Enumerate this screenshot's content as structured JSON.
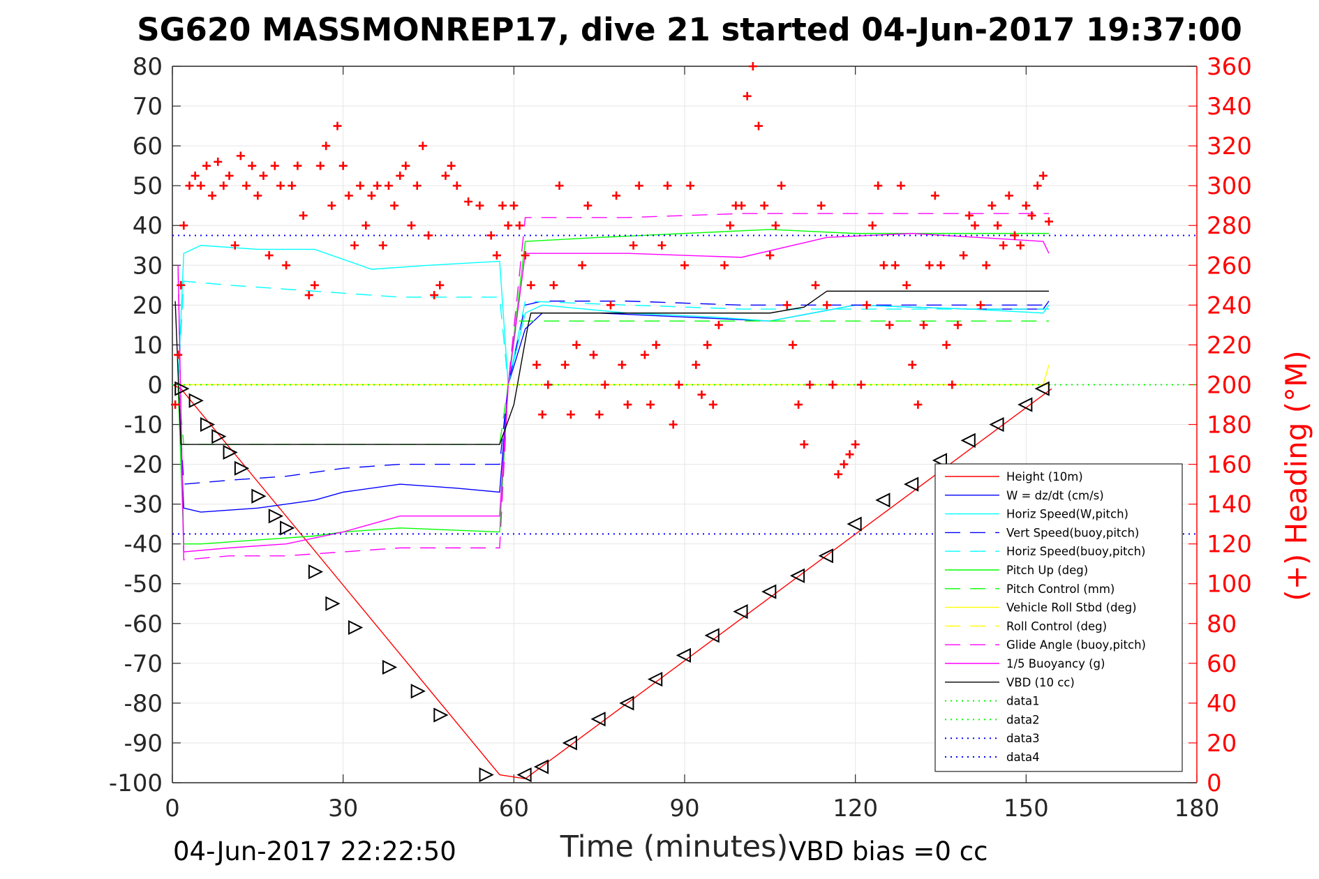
{
  "chart_data": {
    "type": "line",
    "title": "SG620 MASSMONREP17, dive 21 started 04-Jun-2017 19:37:00",
    "xlabel": "Time (minutes)",
    "ylabel": "",
    "ylabel_right": "(+) Heading (°M)",
    "xlim": [
      0,
      180
    ],
    "ylim": [
      -100,
      80
    ],
    "ylim_right": [
      0,
      360
    ],
    "xticks": [
      "0",
      "30",
      "60",
      "90",
      "120",
      "150",
      "180"
    ],
    "yticks_left": [
      "80",
      "70",
      "60",
      "50",
      "40",
      "30",
      "20",
      "10",
      "0",
      "-10",
      "-20",
      "-30",
      "-40",
      "-50",
      "-60",
      "-70",
      "-80",
      "-90",
      "-100"
    ],
    "yticks_right": [
      "360",
      "340",
      "320",
      "300",
      "280",
      "260",
      "240",
      "220",
      "200",
      "180",
      "160",
      "140",
      "120",
      "100",
      "80",
      "60",
      "40",
      "20",
      "0"
    ],
    "grid": true,
    "legend_position": "bottom-right",
    "footer_left": "04-Jun-2017 22:22:50",
    "footer_right": "VBD bias =0 cc",
    "series": [
      {
        "name": "Height (10m)",
        "color": "#ff0000",
        "style": "solid",
        "x": [
          0,
          1.5,
          57.5,
          62,
          154.5
        ],
        "y": [
          0,
          -1,
          -98,
          -99,
          -1
        ]
      },
      {
        "name": "W = dz/dt (cm/s)",
        "color": "#0000ff",
        "style": "solid",
        "x": [
          1,
          2,
          5,
          15,
          25,
          30,
          40,
          50,
          57.5,
          59,
          62,
          65,
          75,
          90,
          105,
          120,
          140,
          153,
          154
        ],
        "y": [
          0,
          -31,
          -32,
          -31,
          -29,
          -27,
          -25,
          -26,
          -27,
          0,
          14,
          18,
          18,
          17,
          16,
          20,
          19,
          19,
          21
        ]
      },
      {
        "name": "Horiz Speed(W,pitch)",
        "color": "#00ffff",
        "style": "solid",
        "x": [
          1,
          2,
          5,
          15,
          25,
          35,
          45,
          57.5,
          59,
          62,
          65,
          80,
          95,
          105,
          120,
          140,
          153,
          154
        ],
        "y": [
          0,
          33,
          35,
          34,
          34,
          29,
          30,
          31,
          0,
          18,
          20,
          18,
          17,
          16,
          20,
          19,
          18,
          20
        ]
      },
      {
        "name": "Vert Speed(buoy,pitch)",
        "color": "#0000ff",
        "style": "dashed",
        "x": [
          1,
          2,
          10,
          20,
          30,
          40,
          57.5,
          59,
          62,
          65,
          80,
          100,
          120,
          140,
          153,
          154
        ],
        "y": [
          0,
          -25,
          -24,
          -23,
          -21,
          -20,
          -20,
          0,
          20,
          21,
          21,
          20,
          20,
          20,
          20,
          20
        ]
      },
      {
        "name": "Horiz Speed(buoy,pitch)",
        "color": "#00ffff",
        "style": "dashed",
        "x": [
          1,
          2,
          10,
          20,
          30,
          40,
          57.5,
          59,
          62,
          80,
          100,
          120,
          140,
          153,
          154
        ],
        "y": [
          0,
          26,
          25,
          24,
          23,
          22,
          22,
          0,
          21,
          20,
          19,
          19,
          19,
          19,
          19
        ]
      },
      {
        "name": "Pitch Up (deg)",
        "color": "#00ff00",
        "style": "solid",
        "x": [
          1,
          2,
          5,
          15,
          25,
          30,
          40,
          57.5,
          59,
          62,
          75,
          90,
          105,
          120,
          140,
          153,
          154
        ],
        "y": [
          0,
          -40,
          -40,
          -39,
          -38,
          -37,
          -36,
          -37,
          0,
          36,
          37,
          38,
          39,
          38,
          38,
          38,
          38
        ]
      },
      {
        "name": "Pitch Control (mm)",
        "color": "#00ff00",
        "style": "dashed",
        "x": [
          1,
          2,
          57.5,
          59,
          60.5,
          154
        ],
        "y": [
          0,
          -15,
          -15,
          0,
          16,
          16
        ]
      },
      {
        "name": "Vehicle Roll Stbd (deg)",
        "color": "#ffff00",
        "style": "solid",
        "x": [
          1,
          2,
          10,
          20,
          30,
          40,
          50,
          57.5,
          59,
          62,
          80,
          100,
          120,
          140,
          153,
          154
        ],
        "y": [
          0,
          0,
          0,
          0,
          0,
          0,
          0,
          0,
          0,
          0,
          0,
          0,
          0,
          0,
          0,
          5
        ]
      },
      {
        "name": "Roll Control (deg)",
        "color": "#ffff00",
        "style": "dashed",
        "x": [
          1,
          2,
          57.5,
          59,
          62,
          154
        ],
        "y": [
          0,
          0,
          0,
          0,
          0,
          0
        ]
      },
      {
        "name": "Glide Angle (buoy,pitch)",
        "color": "#ff00ff",
        "style": "dashed",
        "x": [
          1,
          2,
          10,
          20,
          30,
          40,
          57.5,
          59,
          62,
          80,
          100,
          120,
          140,
          153,
          154
        ],
        "y": [
          29,
          -44,
          -43,
          -43,
          -42,
          -41,
          -41,
          0,
          42,
          42,
          43,
          43,
          43,
          43,
          43
        ]
      },
      {
        "name": "1/5 Buoyancy (g)",
        "color": "#ff00ff",
        "style": "solid",
        "x": [
          1,
          2,
          10,
          20,
          30,
          40,
          57.5,
          59,
          62,
          80,
          100,
          115,
          130,
          153,
          154
        ],
        "y": [
          30,
          -42,
          -41,
          -40,
          -37,
          -33,
          -33,
          0,
          33,
          33,
          32,
          37,
          38,
          36,
          33
        ]
      },
      {
        "name": "VBD (10 cc)",
        "color": "#000000",
        "style": "solid",
        "x": [
          0.5,
          1.5,
          57.5,
          60,
          62.5,
          63,
          105,
          111,
          115,
          154
        ],
        "y": [
          21,
          -15,
          -15,
          -5,
          15,
          18,
          18,
          19.5,
          23.5,
          23.5
        ]
      },
      {
        "name": "data1",
        "color": "#00ff00",
        "style": "dotted",
        "x": [
          0,
          180
        ],
        "y": [
          0,
          0
        ]
      },
      {
        "name": "data2",
        "color": "#00ff00",
        "style": "dotted",
        "x": [
          0,
          180
        ],
        "y": [
          0,
          0
        ]
      },
      {
        "name": "data3",
        "color": "#0000ff",
        "style": "dotted",
        "x": [
          0,
          180
        ],
        "y": [
          37.5,
          37.5
        ]
      },
      {
        "name": "data4",
        "color": "#0000ff",
        "style": "dotted",
        "x": [
          0,
          180
        ],
        "y": [
          -37.5,
          -37.5
        ]
      }
    ],
    "heading_series": {
      "name": "(+) Heading (°M)",
      "color": "#ff0000",
      "marker": "+",
      "x": [
        0.5,
        1,
        1.5,
        2,
        3,
        4,
        5,
        6,
        7,
        8,
        9,
        10,
        11,
        12,
        13,
        14,
        15,
        16,
        17,
        18,
        19,
        20,
        21,
        22,
        23,
        24,
        25,
        26,
        27,
        28,
        29,
        30,
        31,
        32,
        33,
        34,
        35,
        36,
        37,
        38,
        39,
        40,
        41,
        42,
        43,
        44,
        45,
        46,
        47,
        48,
        49,
        50,
        52,
        54,
        56,
        57,
        58,
        59,
        60,
        61,
        62,
        63,
        64,
        65,
        66,
        67,
        68,
        69,
        70,
        71,
        72,
        73,
        74,
        75,
        76,
        77,
        78,
        79,
        80,
        81,
        82,
        83,
        84,
        85,
        86,
        87,
        88,
        89,
        90,
        91,
        92,
        93,
        94,
        95,
        96,
        97,
        98,
        99,
        100,
        101,
        102,
        103,
        104,
        105,
        106,
        107,
        108,
        109,
        110,
        111,
        112,
        113,
        114,
        115,
        116,
        117,
        118,
        119,
        120,
        121,
        122,
        123,
        124,
        125,
        126,
        127,
        128,
        129,
        130,
        131,
        132,
        133,
        134,
        135,
        136,
        137,
        138,
        139,
        140,
        141,
        142,
        143,
        144,
        145,
        146,
        147,
        148,
        149,
        150,
        151,
        152,
        153,
        154
      ],
      "y": [
        190,
        215,
        250,
        280,
        300,
        305,
        300,
        310,
        295,
        312,
        300,
        305,
        270,
        315,
        300,
        310,
        295,
        305,
        265,
        310,
        300,
        260,
        300,
        310,
        285,
        245,
        250,
        310,
        320,
        290,
        330,
        310,
        295,
        270,
        300,
        280,
        295,
        300,
        270,
        300,
        290,
        305,
        310,
        280,
        300,
        320,
        275,
        245,
        250,
        305,
        310,
        300,
        292,
        290,
        275,
        265,
        290,
        280,
        290,
        280,
        265,
        250,
        210,
        185,
        200,
        250,
        300,
        210,
        185,
        220,
        260,
        290,
        215,
        185,
        200,
        240,
        295,
        210,
        190,
        270,
        300,
        215,
        190,
        220,
        270,
        300,
        180,
        200,
        260,
        300,
        210,
        195,
        220,
        190,
        230,
        260,
        280,
        290,
        290,
        345,
        360,
        330,
        290,
        265,
        280,
        300,
        240,
        220,
        190,
        170,
        200,
        250,
        290,
        240,
        200,
        155,
        160,
        165,
        170,
        200,
        240,
        280,
        300,
        260,
        230,
        260,
        300,
        250,
        210,
        190,
        230,
        260,
        295,
        260,
        220,
        200,
        230,
        265,
        285,
        280,
        240,
        260,
        290,
        280,
        270,
        295,
        275,
        270,
        290,
        285,
        300,
        305,
        282
      ]
    },
    "depth_markers": {
      "down_x": [
        1.5,
        4,
        6,
        8,
        10,
        12,
        15,
        18,
        20,
        25,
        28,
        32,
        38,
        43,
        47,
        55
      ],
      "down_y": [
        -1,
        -4,
        -10,
        -13,
        -17,
        -21,
        -28,
        -33,
        -36,
        -47,
        -55,
        -61,
        -71,
        -77,
        -83,
        -98
      ],
      "up_x": [
        62,
        65,
        70,
        75,
        80,
        85,
        90,
        95,
        100,
        105,
        110,
        115,
        120,
        125,
        130,
        135,
        140,
        145,
        150,
        153
      ],
      "up_y": [
        -98,
        -96,
        -90,
        -84,
        -80,
        -74,
        -68,
        -63,
        -57,
        -52,
        -48,
        -43,
        -35,
        -29,
        -25,
        -19,
        -14,
        -10,
        -5,
        -1
      ]
    }
  }
}
